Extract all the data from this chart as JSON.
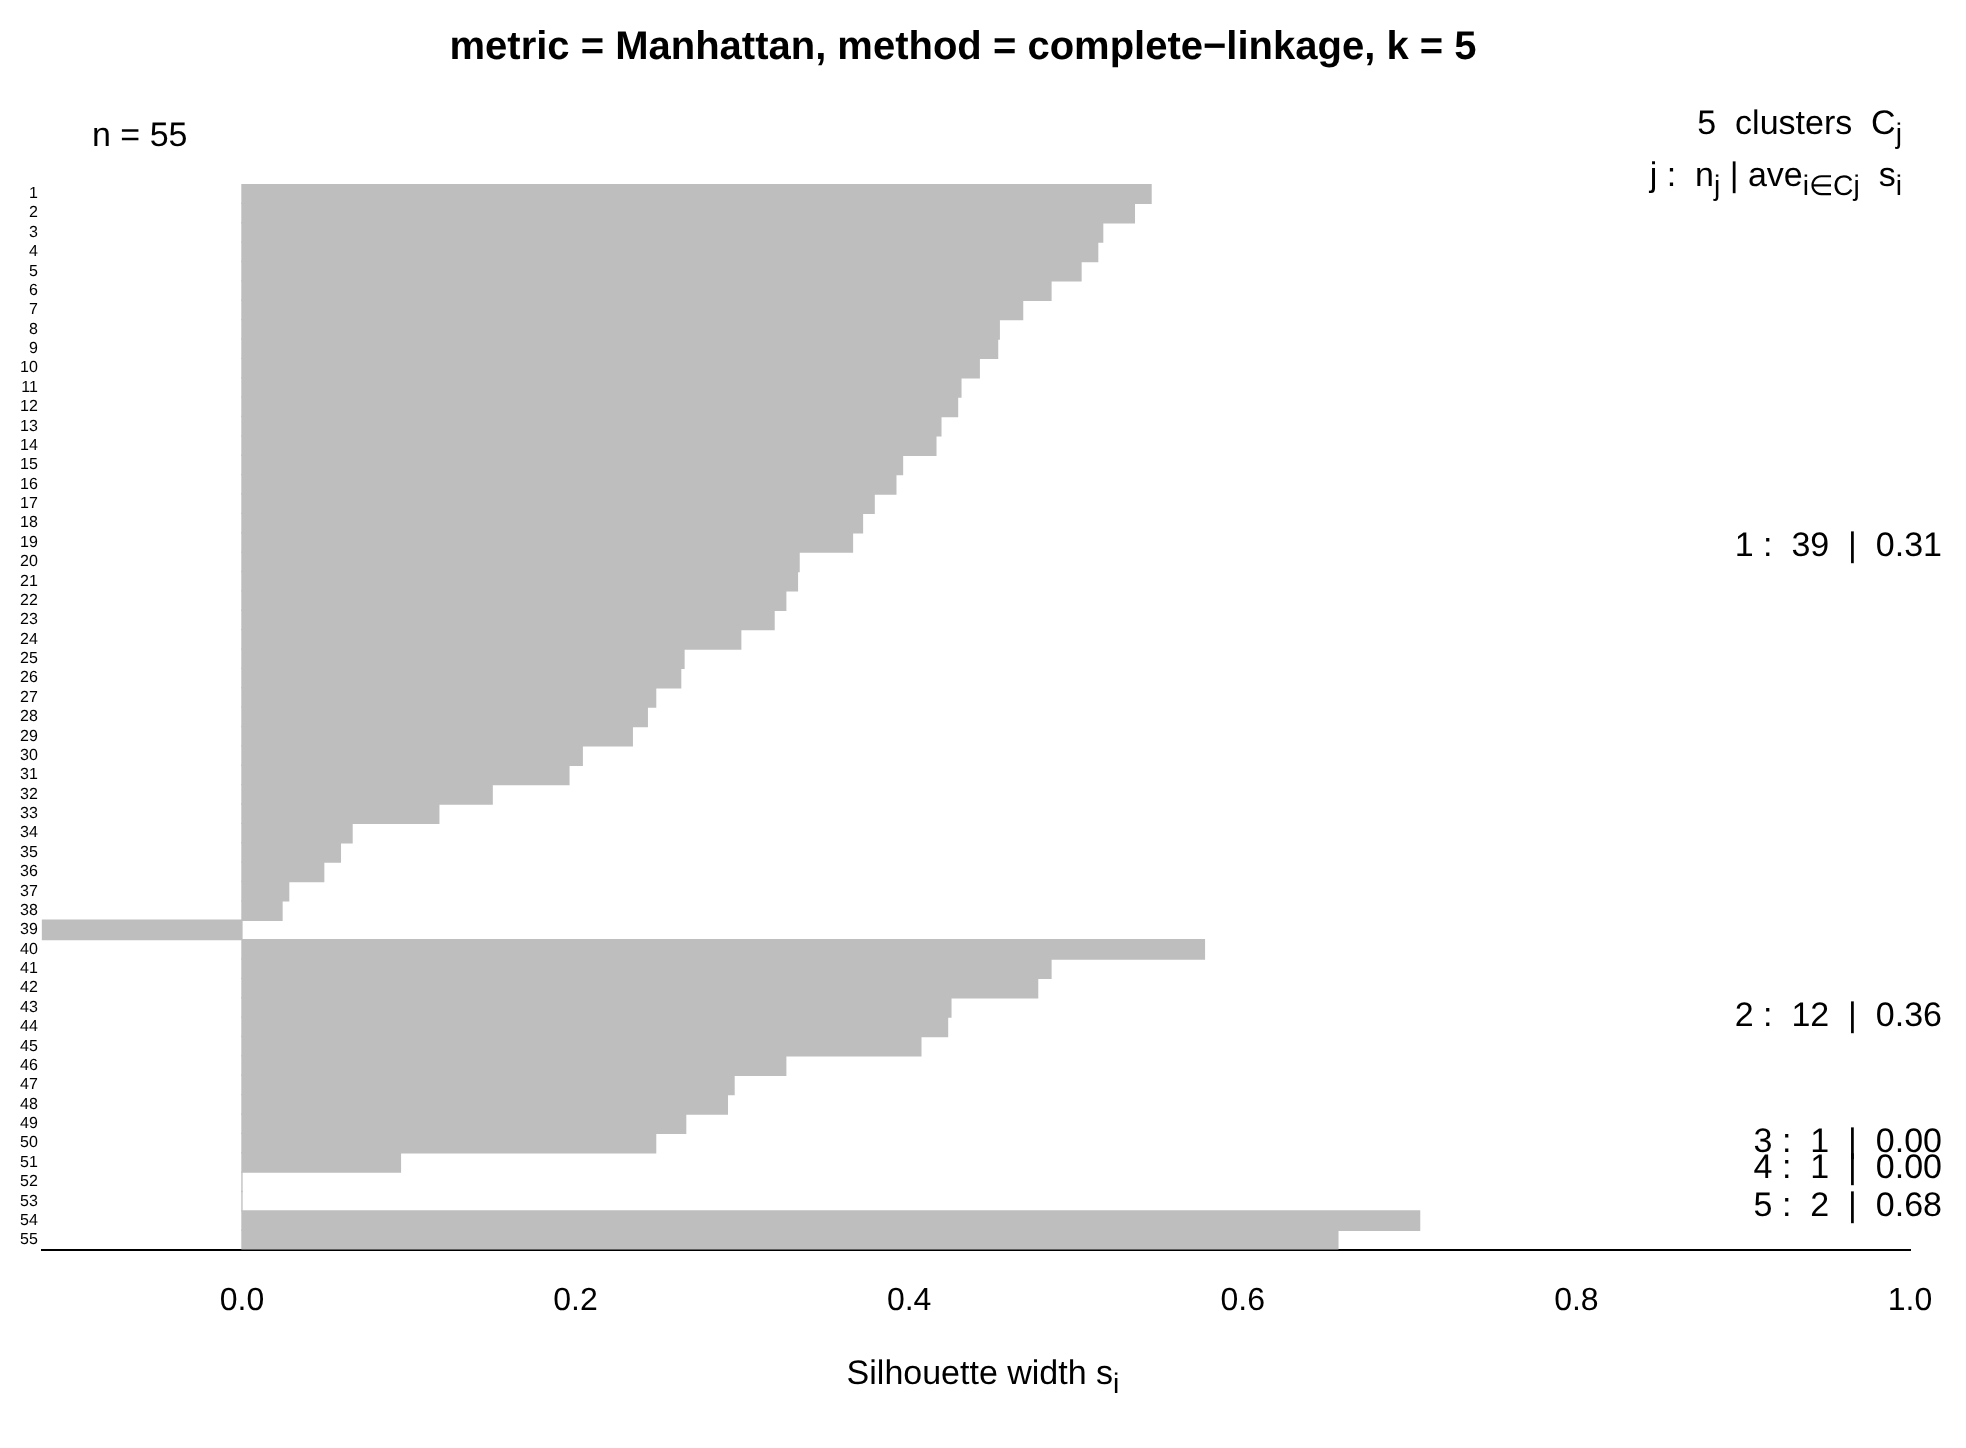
{
  "chart_data": {
    "type": "bar",
    "orientation": "horizontal",
    "title": "metric = Manhattan, method = complete−linkage, k = 5",
    "xlabel": "Silhouette width s$_{i}$",
    "categories": [
      "1",
      "2",
      "3",
      "4",
      "5",
      "6",
      "7",
      "8",
      "9",
      "10",
      "11",
      "12",
      "13",
      "14",
      "15",
      "16",
      "17",
      "18",
      "19",
      "20",
      "21",
      "22",
      "23",
      "24",
      "25",
      "26",
      "27",
      "28",
      "29",
      "30",
      "31",
      "32",
      "33",
      "34",
      "35",
      "36",
      "37",
      "38",
      "39",
      "40",
      "41",
      "42",
      "43",
      "44",
      "45",
      "46",
      "47",
      "48",
      "49",
      "50",
      "51",
      "52",
      "53",
      "54",
      "55"
    ],
    "values": [
      0.545,
      0.535,
      0.516,
      0.513,
      0.503,
      0.485,
      0.468,
      0.454,
      0.453,
      0.442,
      0.431,
      0.429,
      0.419,
      0.416,
      0.396,
      0.392,
      0.379,
      0.372,
      0.366,
      0.334,
      0.333,
      0.326,
      0.319,
      0.299,
      0.265,
      0.263,
      0.248,
      0.243,
      0.234,
      0.204,
      0.196,
      0.15,
      0.118,
      0.066,
      0.059,
      0.049,
      0.028,
      0.024,
      -0.12,
      0.577,
      0.485,
      0.477,
      0.425,
      0.423,
      0.407,
      0.326,
      0.295,
      0.291,
      0.266,
      0.248,
      0.095,
      0,
      0,
      0.706,
      0.657
    ],
    "color": "#bebebe",
    "xlim": [
      -0.12,
      1.0
    ],
    "xticks": [
      {
        "value": 0,
        "label": "0.0"
      },
      {
        "value": 0.2,
        "label": "0.2"
      },
      {
        "value": 0.4,
        "label": "0.4"
      },
      {
        "value": 0.6,
        "label": "0.6"
      },
      {
        "value": 0.8,
        "label": "0.8"
      },
      {
        "value": 1.0,
        "label": "1.0"
      }
    ],
    "grid": false,
    "legend": false,
    "annotations": [
      "n = 55",
      "5  clusters  C$_{j}$",
      "j :  n$_{j}$ | ave$_{i∈Cj}$  s$_{i}$",
      "1 :  39  |  0.31",
      "2 :  12  |  0.36",
      "3 :  1  |  0.00",
      "4 :  1  |  0.00",
      "5 :  2  |  0.68"
    ]
  }
}
